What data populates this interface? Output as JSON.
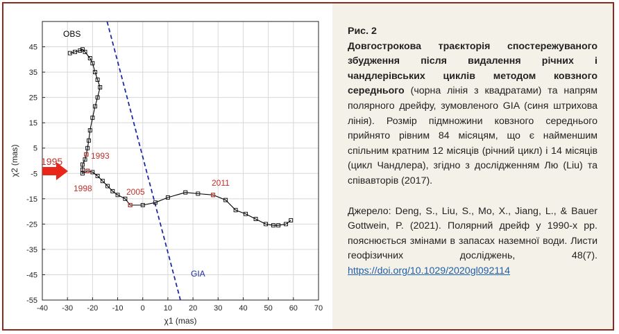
{
  "chart_data": {
    "type": "line",
    "xlabel": "χ1 (mas)",
    "ylabel": "χ2 (mas)",
    "xlim": [
      -40,
      70
    ],
    "ylim": [
      -55,
      55
    ],
    "x_ticks": [
      -40,
      -30,
      -20,
      -10,
      0,
      10,
      20,
      30,
      40,
      50,
      60,
      70
    ],
    "y_ticks": [
      45,
      35,
      25,
      15,
      5,
      -5,
      -15,
      -25,
      -35,
      -45,
      -55
    ],
    "grid": true,
    "series": [
      {
        "name": "OBS",
        "color": "#000000",
        "marker": "square",
        "points": [
          [
            -29,
            42.5
          ],
          [
            -27,
            43
          ],
          [
            -25,
            43.5
          ],
          [
            -24,
            44
          ],
          [
            -23,
            43
          ],
          [
            -21,
            40.5
          ],
          [
            -20,
            38.5
          ],
          [
            -19,
            35
          ],
          [
            -18,
            32
          ],
          [
            -17,
            29
          ],
          [
            -18,
            25
          ],
          [
            -19,
            21.5
          ],
          [
            -20,
            17
          ],
          [
            -21,
            12
          ],
          [
            -21.5,
            8
          ],
          [
            -22,
            5
          ],
          [
            -22.5,
            2.5
          ],
          [
            -23,
            0.5
          ],
          [
            -24,
            -1.5
          ],
          [
            -24,
            -3.5
          ],
          [
            -24,
            -5
          ],
          [
            -22,
            -4
          ],
          [
            -20,
            -4.5
          ],
          [
            -18,
            -6
          ],
          [
            -16,
            -8
          ],
          [
            -14,
            -10
          ],
          [
            -12,
            -12
          ],
          [
            -10,
            -13.5
          ],
          [
            -7,
            -15
          ],
          [
            -5,
            -17.5
          ],
          [
            0,
            -17.5
          ],
          [
            5,
            -16.5
          ],
          [
            10,
            -14.5
          ],
          [
            17,
            -12.5
          ],
          [
            22,
            -13
          ],
          [
            28,
            -13.5
          ],
          [
            33,
            -15.5
          ],
          [
            37,
            -19.5
          ],
          [
            41,
            -21
          ],
          [
            45,
            -23
          ],
          [
            49,
            -25
          ],
          [
            52,
            -25.5
          ],
          [
            54,
            -25.5
          ],
          [
            57,
            -25
          ],
          [
            59,
            -23.5
          ]
        ]
      },
      {
        "name": "GIA",
        "color": "#1c2ba3",
        "dash": true,
        "points": [
          [
            -15,
            58
          ],
          [
            15,
            -55
          ]
        ]
      }
    ],
    "highlighted": [
      {
        "label": "1993",
        "x": -22.5,
        "y": 2.5,
        "color": "#c0302a"
      },
      {
        "label": "1995",
        "x": -22,
        "y": -4,
        "color": "#c0302a"
      },
      {
        "label": "1998",
        "x": -22,
        "y": -4,
        "color": "#c0302a"
      },
      {
        "label": "2005",
        "x": -5,
        "y": -17.5,
        "color": "#c0302a"
      },
      {
        "label": "2011",
        "x": 28,
        "y": -13.5,
        "color": "#c0302a"
      }
    ],
    "annotations": {
      "obs_label": "OBS",
      "gia_label": "GIA",
      "label_1993": "1993",
      "label_1995": "1995",
      "label_1998": "1998",
      "label_2005": "2005",
      "label_2011": "2011"
    },
    "colors": {
      "highlight": "#c0302a",
      "arrow": "#e8261a",
      "gia": "#1c2ba3",
      "grid": "#d8d8d8"
    }
  },
  "caption": {
    "heading": "Рис. 2",
    "bold_text": "Довгострокова траєкторія спостережуваного збудження після видалення річних і чандлерівських циклів методом ковзного середнього",
    "body_text": " (чорна лінія з квадратами) та напрям полярного дрейфу, зумовленого GIA (синя штрихова лінія). Розмір підмножини ковзного середнього прийнято рівним 84 місяцям, що є найменшим спільним кратним 12 місяців (річний цикл) і 14 місяців (цикл Чандлера), згідно з дослідженням Лю (Liu) та співавторів (2017).",
    "source_text": "Джерело: Deng, S., Liu, S., Mo, X., Jiang, L., & Bauer Gottwein, P. (2021). Полярний дрейф у 1990-х рр. пояснюється змінами в запасах наземної води. Листи геофізичних досліджень, 48(7). ",
    "source_link": "https://doi.org/10.1029/2020gl092114"
  }
}
